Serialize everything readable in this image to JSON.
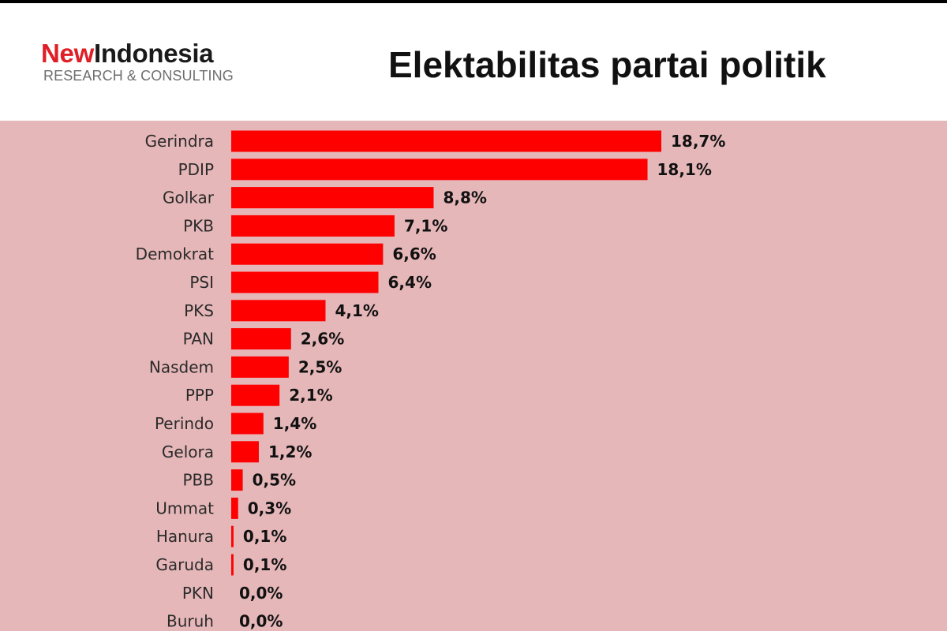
{
  "logo": {
    "part1": "New",
    "part2": "Indonesia",
    "subtitle": "RESEARCH & CONSULTING"
  },
  "colors": {
    "bar": "#ff0000",
    "panel_background": "#e6b7b9",
    "logo_accent": "#e01e26"
  },
  "chart_data": {
    "type": "bar",
    "orientation": "horizontal",
    "title": "Elektabilitas partai politik",
    "categories": [
      "Gerindra",
      "PDIP",
      "Golkar",
      "PKB",
      "Demokrat",
      "PSI",
      "PKS",
      "PAN",
      "Nasdem",
      "PPP",
      "Perindo",
      "Gelora",
      "PBB",
      "Ummat",
      "Hanura",
      "Garuda",
      "PKN",
      "Buruh"
    ],
    "values": [
      18.7,
      18.1,
      8.8,
      7.1,
      6.6,
      6.4,
      4.1,
      2.6,
      2.5,
      2.1,
      1.4,
      1.2,
      0.5,
      0.3,
      0.1,
      0.1,
      0.0,
      0.0
    ],
    "labels": [
      "18,7%",
      "18,1%",
      "8,8%",
      "7,1%",
      "6,6%",
      "6,4%",
      "4,1%",
      "2,6%",
      "2,5%",
      "2,1%",
      "1,4%",
      "1,2%",
      "0,5%",
      "0,3%",
      "0,1%",
      "0,1%",
      "0,0%",
      "0,0%"
    ],
    "xlim": [
      0,
      18.7
    ],
    "grid": false,
    "legend": "none"
  }
}
